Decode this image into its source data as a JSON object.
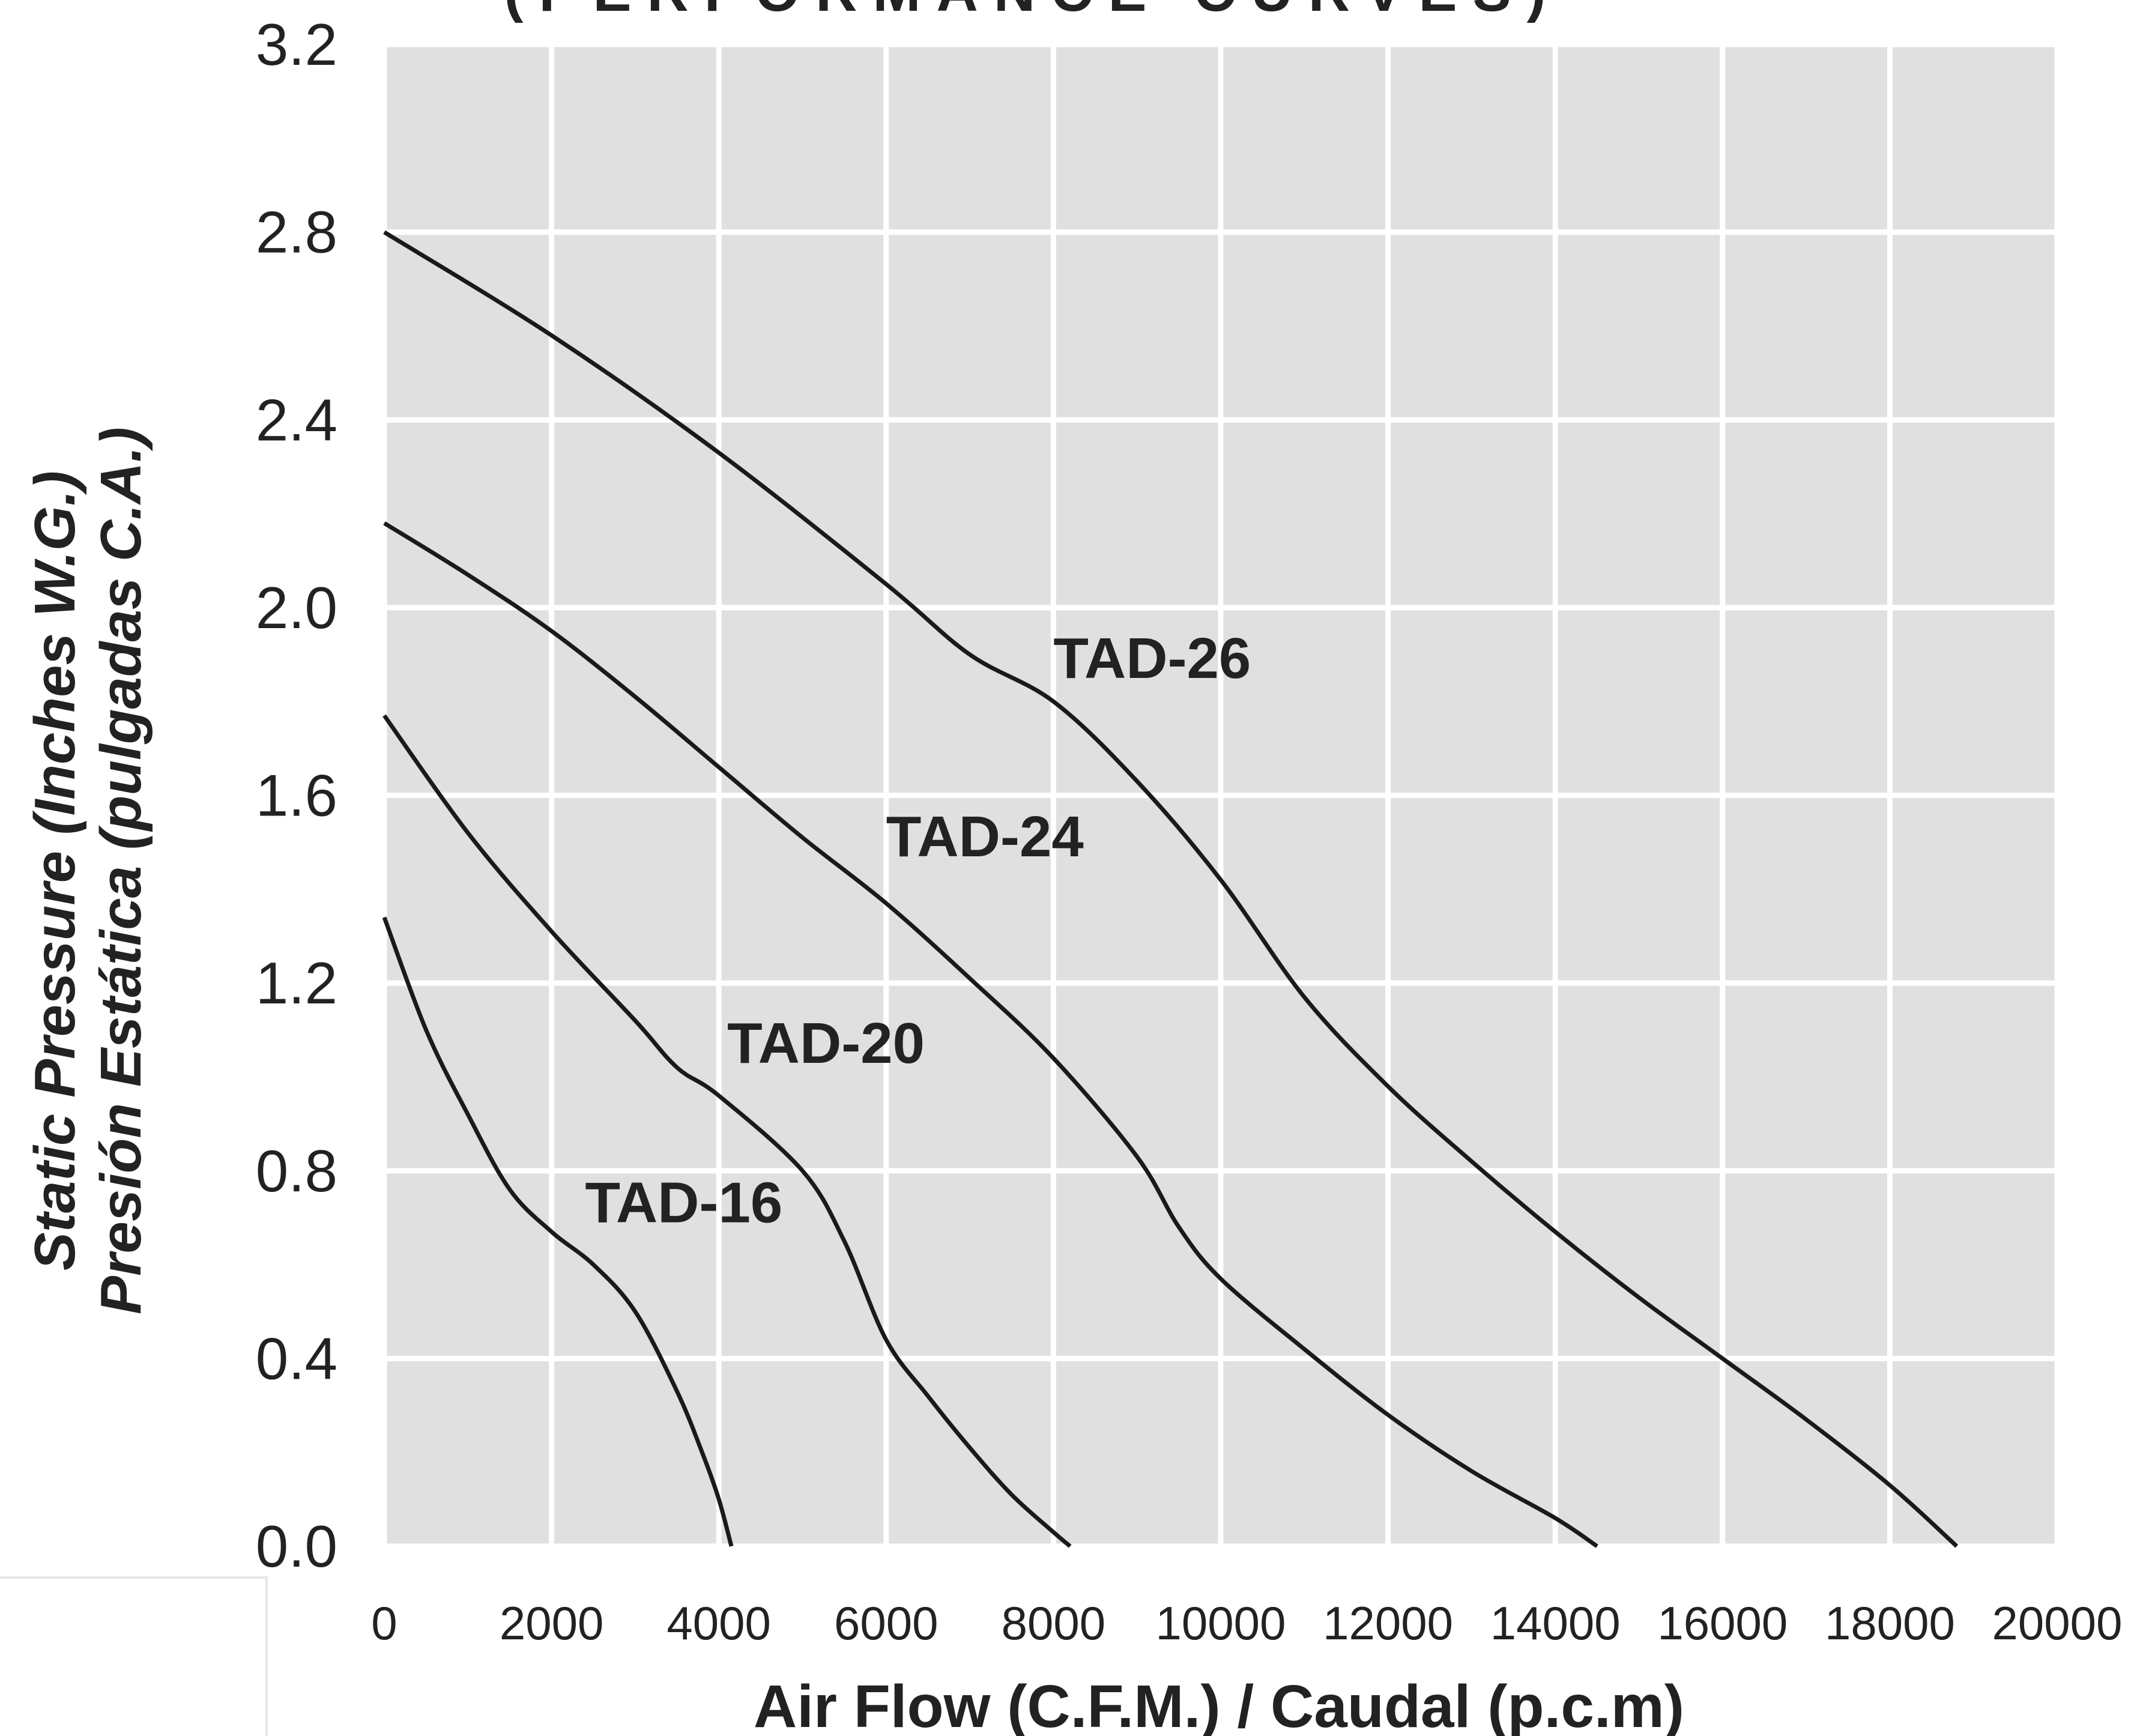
{
  "chart_data": {
    "type": "line",
    "title": "(PERFORMANCE CURVES)",
    "xlabel": "Air Flow (C.F.M.) / Caudal (p.c.m)",
    "ylabel_line1": "Static Pressure (Inches W.G.)",
    "ylabel_line2": "Presión Estática (pulgadas C.A.)",
    "xlim": [
      0,
      20000
    ],
    "ylim": [
      0.0,
      3.2
    ],
    "xticks": [
      0,
      2000,
      4000,
      6000,
      8000,
      10000,
      12000,
      14000,
      16000,
      18000,
      20000
    ],
    "yticks": [
      0.0,
      0.4,
      0.8,
      1.2,
      1.6,
      2.0,
      2.4,
      2.8,
      3.2
    ],
    "xtick_labels": [
      "0",
      "2000",
      "4000",
      "6000",
      "8000",
      "10000",
      "12000",
      "14000",
      "16000",
      "18000",
      "20000"
    ],
    "ytick_labels": [
      "0.0",
      "0.4",
      "0.8",
      "1.2",
      "1.6",
      "2.0",
      "2.4",
      "2.8",
      "3.2"
    ],
    "grid": true,
    "colors": {
      "plot_background": "#e0e0e0",
      "grid": "#ffffff",
      "line": "#1a1a1a",
      "text": "#222222"
    },
    "series": [
      {
        "name": "TAD-16",
        "label_at": [
          2400,
          0.69
        ],
        "x": [
          0,
          500,
          1000,
          1500,
          2000,
          2500,
          3000,
          3500,
          3800,
          4000,
          4150
        ],
        "y": [
          1.34,
          1.1,
          0.92,
          0.76,
          0.67,
          0.6,
          0.5,
          0.33,
          0.2,
          0.1,
          0.0
        ]
      },
      {
        "name": "TAD-20",
        "label_at": [
          4100,
          1.03
        ],
        "x": [
          0,
          1000,
          2000,
          3000,
          3500,
          4000,
          5000,
          5500,
          6000,
          6500,
          7000,
          7500,
          8000,
          8200
        ],
        "y": [
          1.77,
          1.52,
          1.31,
          1.12,
          1.02,
          0.96,
          0.8,
          0.65,
          0.44,
          0.32,
          0.21,
          0.11,
          0.03,
          0.0
        ]
      },
      {
        "name": "TAD-24",
        "label_at": [
          6000,
          1.47
        ],
        "x": [
          0,
          1000,
          2000,
          3000,
          4000,
          5000,
          6000,
          7000,
          8000,
          9000,
          9500,
          10000,
          11000,
          12000,
          13000,
          14000,
          14500
        ],
        "y": [
          2.18,
          2.07,
          1.95,
          1.81,
          1.66,
          1.51,
          1.37,
          1.21,
          1.04,
          0.83,
          0.68,
          0.57,
          0.42,
          0.28,
          0.16,
          0.06,
          0.0
        ]
      },
      {
        "name": "TAD-26",
        "label_at": [
          8000,
          1.85
        ],
        "x": [
          0,
          2000,
          4000,
          6000,
          7000,
          8000,
          9000,
          10000,
          11000,
          12000,
          13000,
          14000,
          15000,
          16000,
          17000,
          18000,
          18800
        ],
        "y": [
          2.8,
          2.58,
          2.33,
          2.05,
          1.9,
          1.8,
          1.63,
          1.42,
          1.17,
          0.98,
          0.82,
          0.67,
          0.53,
          0.4,
          0.27,
          0.13,
          0.0
        ]
      }
    ]
  }
}
